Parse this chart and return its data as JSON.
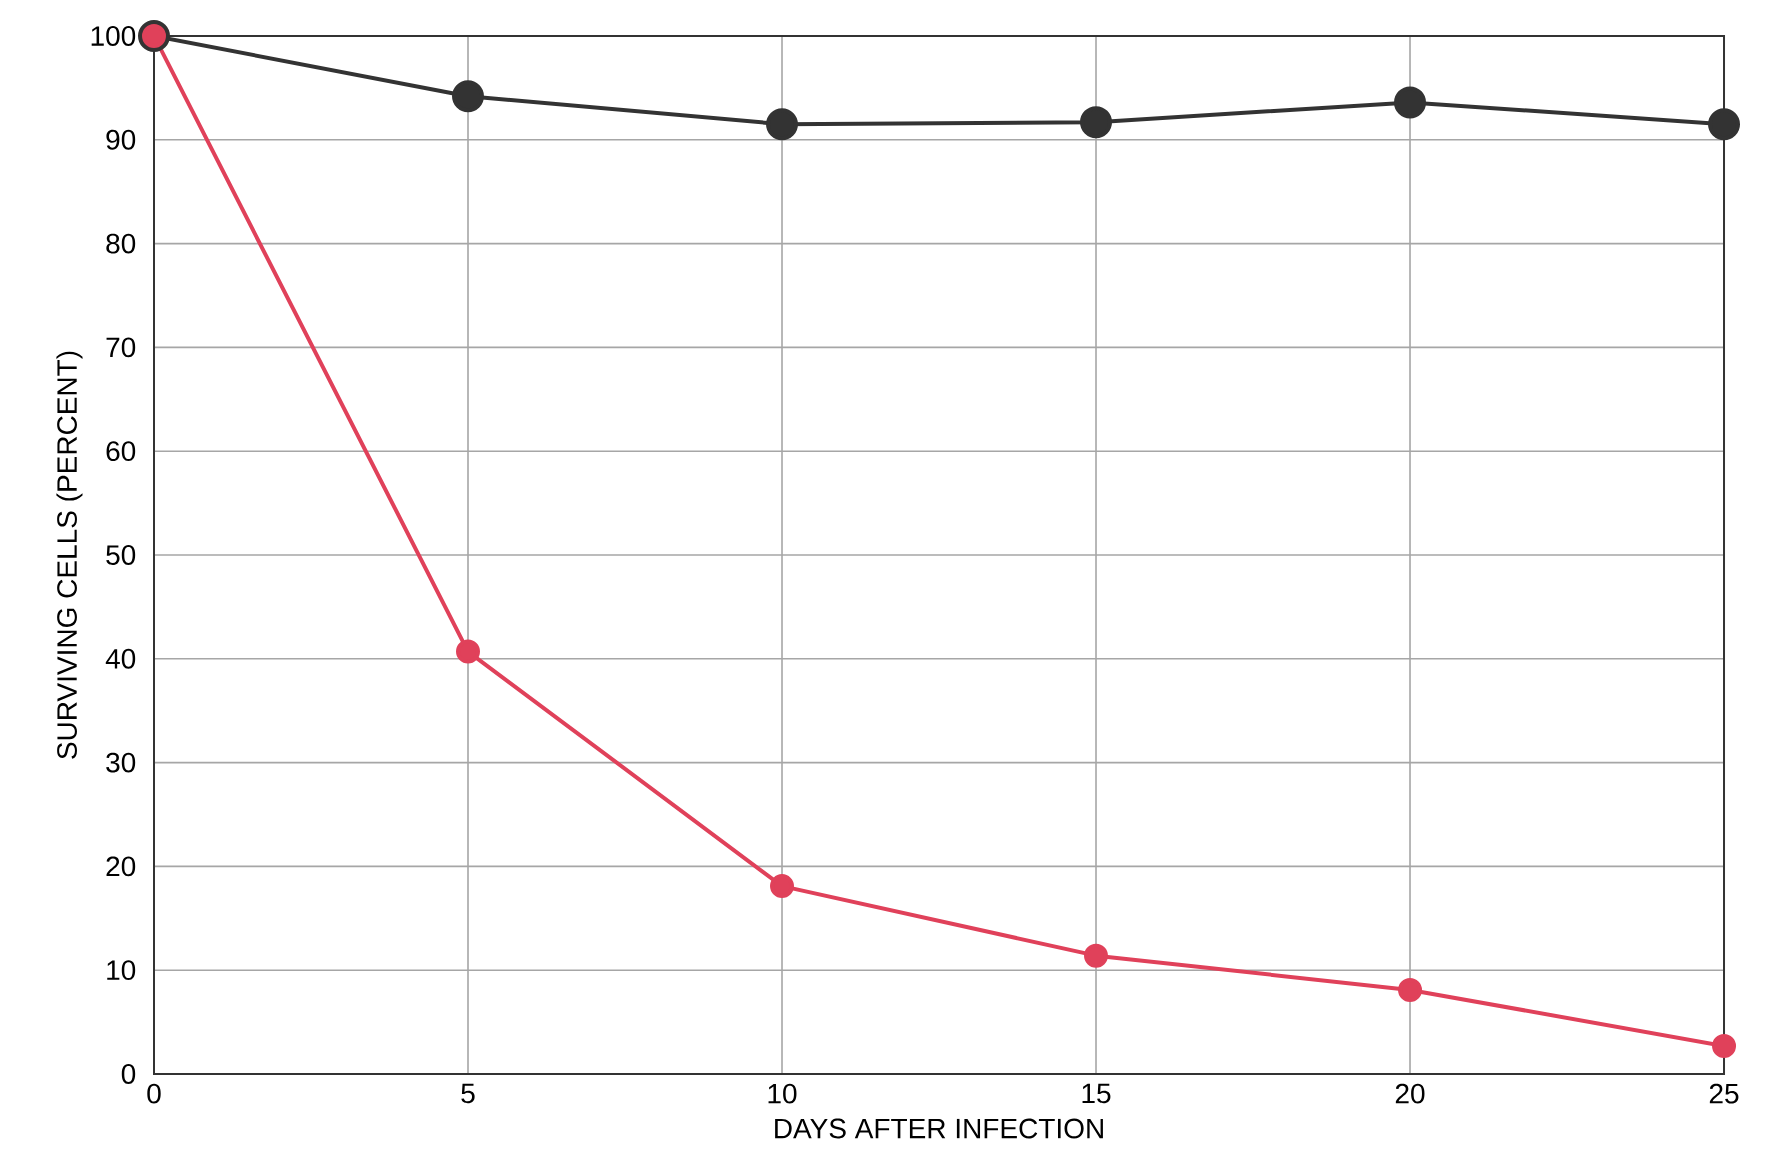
{
  "chart_data": {
    "type": "line",
    "xlabel": "DAYS AFTER INFECTION",
    "ylabel": "SURVIVING CELLS (PERCENT)",
    "x": [
      0,
      5,
      10,
      15,
      20,
      25
    ],
    "series": [
      {
        "color": "#333333",
        "values": [
          100,
          94.2,
          91.5,
          91.7,
          93.6,
          91.5
        ]
      },
      {
        "color": "#e0415a",
        "values": [
          100,
          40.7,
          18.1,
          11.4,
          8.1,
          2.7
        ]
      }
    ],
    "xlim": [
      0,
      25
    ],
    "ylim": [
      0,
      100
    ],
    "xticks": [
      0,
      5,
      10,
      15,
      20,
      25
    ],
    "yticks": [
      0,
      10,
      20,
      30,
      40,
      50,
      60,
      70,
      80,
      90,
      100
    ],
    "grid": true,
    "marker": "circle",
    "line_style": "solid"
  }
}
